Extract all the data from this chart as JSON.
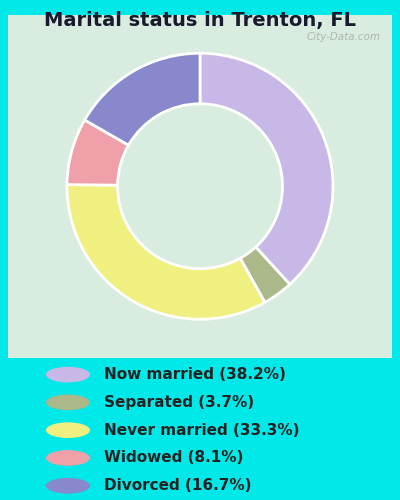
{
  "title": "Marital status in Trenton, FL",
  "background_cyan": "#00e8e8",
  "background_chart": "#d8ede0",
  "categories": [
    "Now married",
    "Separated",
    "Never married",
    "Widowed",
    "Divorced"
  ],
  "values": [
    38.2,
    3.7,
    33.3,
    8.1,
    16.7
  ],
  "colors": [
    "#c8b8e8",
    "#aab88a",
    "#f0f080",
    "#f0a0a8",
    "#8888cc"
  ],
  "legend_labels": [
    "Now married (38.2%)",
    "Separated (3.7%)",
    "Never married (33.3%)",
    "Widowed (8.1%)",
    "Divorced (16.7%)"
  ],
  "watermark": "City-Data.com",
  "donut_width": 0.38,
  "title_fontsize": 14,
  "legend_fontsize": 11
}
